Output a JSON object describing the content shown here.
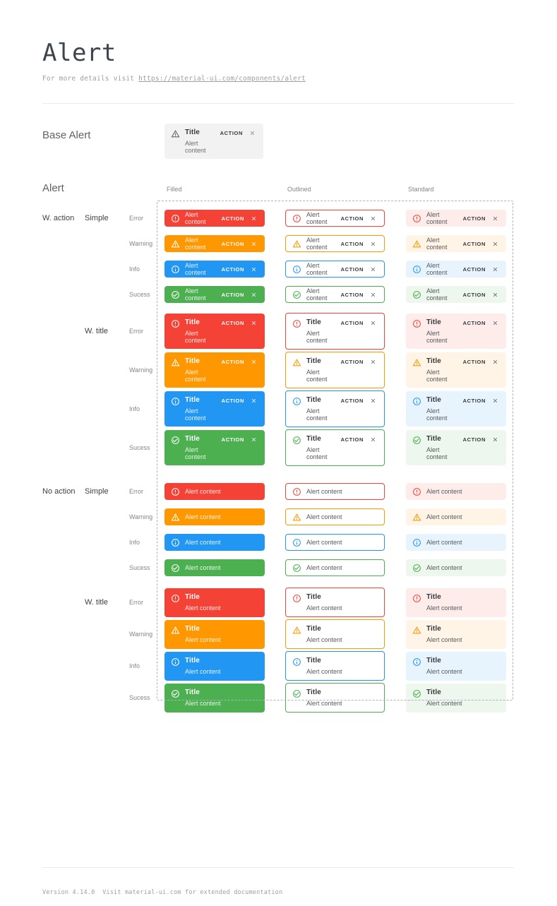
{
  "page": {
    "title": "Alert",
    "subtitle_prefix": "For more details visit ",
    "subtitle_link": "https://material-ui.com/components/alert",
    "footer_text": "Version 4.14.0  Visit material-ui.com for extended documentation"
  },
  "base_alert_section": {
    "label": "Base Alert",
    "alert": {
      "icon": "warning-icon",
      "close_icon": "close-icon",
      "title": "Title",
      "content": "Alert content",
      "action_label": "ACTION",
      "background": "#f2f2f2"
    }
  },
  "alert_section": {
    "label": "Alert",
    "columns": [
      "Filled",
      "Outlined",
      "Standard"
    ]
  },
  "alert_text": {
    "title": "Title",
    "content": "Alert content",
    "action_label": "ACTION",
    "close_icon": "close-icon"
  },
  "severities": {
    "error": {
      "label": "Error",
      "icon": "error-icon",
      "main": "#f44336",
      "standard_bg": "#fdecea"
    },
    "warning": {
      "label": "Warning",
      "icon": "warning-icon",
      "main": "#ff9800",
      "standard_bg": "#fff4e5"
    },
    "info": {
      "label": "Info",
      "icon": "info-icon",
      "main": "#2196f3",
      "standard_bg": "#e8f4fd"
    },
    "success": {
      "label": "Sucess",
      "icon": "success-icon",
      "main": "#4caf50",
      "standard_bg": "#edf7ed"
    }
  },
  "grid": {
    "groups": [
      {
        "label": "W. action",
        "subgroups": [
          {
            "label": "Simple",
            "with_title": false,
            "with_action": true,
            "severities": [
              "error",
              "warning",
              "info",
              "success"
            ]
          },
          {
            "label": "W. title",
            "with_title": true,
            "with_action": true,
            "severities": [
              "error",
              "warning",
              "info",
              "success"
            ]
          }
        ]
      },
      {
        "label": "No action",
        "subgroups": [
          {
            "label": "Simple",
            "with_title": false,
            "with_action": false,
            "severities": [
              "error",
              "warning",
              "info",
              "success"
            ]
          },
          {
            "label": "W. title",
            "with_title": true,
            "with_action": false,
            "severities": [
              "error",
              "warning",
              "info",
              "success"
            ]
          }
        ]
      }
    ]
  }
}
